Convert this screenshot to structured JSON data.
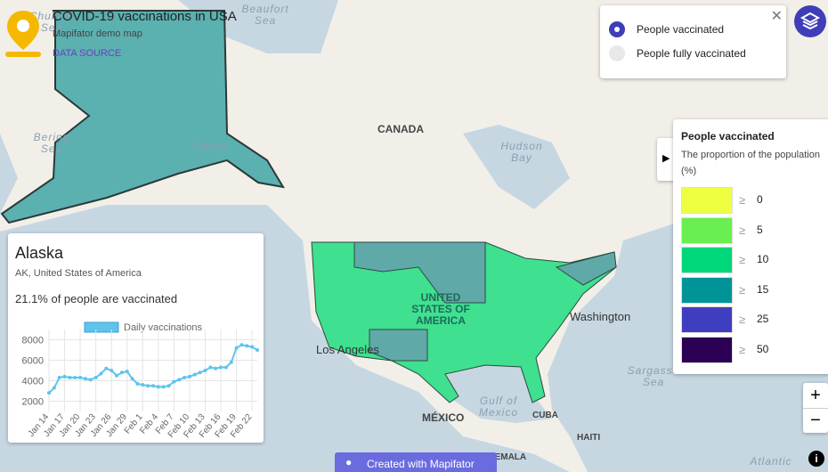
{
  "header": {
    "title": "COVID-19 vaccinations in USA",
    "subtitle": "Mapifator demo map",
    "link": "DATA SOURCE"
  },
  "layers": {
    "options": [
      "People vaccinated",
      "People fully vaccinated"
    ],
    "selected": 0
  },
  "legend": {
    "title": "People vaccinated",
    "description": "The proportion of the population (%)",
    "symbol": "≥",
    "bins": [
      {
        "value": 0,
        "color": "#eeff41"
      },
      {
        "value": 5,
        "color": "#69f050"
      },
      {
        "value": 10,
        "color": "#00d67a"
      },
      {
        "value": 15,
        "color": "#009499"
      },
      {
        "value": 25,
        "color": "#3f3ec0"
      },
      {
        "value": 50,
        "color": "#2b0055"
      }
    ]
  },
  "map": {
    "labels": [
      "Chukchi Sea",
      "Beaufort Sea",
      "Bering Sea",
      "Alaska",
      "CANADA",
      "Hudson Bay",
      "UNITED STATES OF AMERICA",
      "Washington",
      "Los Angeles",
      "Sargasso Sea",
      "Gulf of Mexico",
      "MÉXICO",
      "CUBA",
      "HAITI",
      "GUATEMALA",
      "Atlantic"
    ]
  },
  "controls": {
    "zoom_in": "+",
    "zoom_out": "−"
  },
  "footer": "Created with Mapifator",
  "popup": {
    "title": "Alaska",
    "subtitle": "AK, United States of America",
    "text": "21.1% of people are vaccinated",
    "chart_data": {
      "type": "line",
      "categories": [
        "Jan 14",
        null,
        null,
        "Jan 17",
        null,
        null,
        "Jan 20",
        null,
        null,
        "Jan 23",
        null,
        null,
        "Jan 26",
        null,
        null,
        "Jan 29",
        null,
        null,
        "Feb 1",
        null,
        null,
        "Feb 4",
        null,
        null,
        "Feb 7",
        null,
        null,
        "Feb 10",
        null,
        null,
        "Feb 13",
        null,
        null,
        "Feb 16",
        null,
        null,
        "Feb 19",
        null,
        null,
        "Feb 22",
        null
      ],
      "series": [
        {
          "name": "Daily vaccinations",
          "color": "#5ec4ec",
          "values": [
            2800,
            3300,
            4300,
            4400,
            4300,
            4300,
            4300,
            4200,
            4100,
            4300,
            4700,
            5200,
            5000,
            4500,
            4800,
            4900,
            4200,
            3700,
            3600,
            3500,
            3500,
            3400,
            3400,
            3500,
            3900,
            4100,
            4300,
            4400,
            4600,
            4800,
            5000,
            5300,
            5200,
            5300,
            5300,
            5800,
            7200,
            7500,
            7400,
            7300,
            7000
          ]
        }
      ],
      "ylim": [
        1000,
        9000
      ],
      "yticks": [
        2000,
        4000,
        6000,
        8000
      ],
      "grid": true
    }
  }
}
